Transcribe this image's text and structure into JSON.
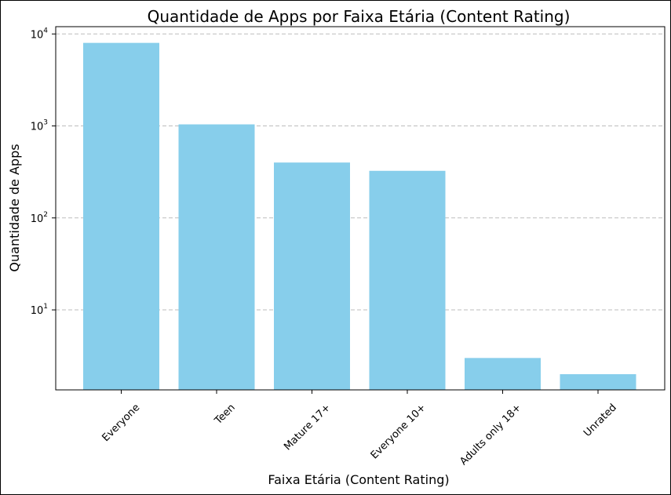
{
  "chart_data": {
    "type": "bar",
    "title": "Quantidade de Apps por Faixa Etária (Content Rating)",
    "xlabel": "Faixa Etária (Content Rating)",
    "ylabel": "Quantidade de Apps",
    "categories": [
      "Everyone",
      "Teen",
      "Mature 17+",
      "Everyone 10+",
      "Adults only 18+",
      "Unrated"
    ],
    "values": [
      8000,
      1040,
      400,
      325,
      3,
      2
    ],
    "yscale": "log",
    "ylim": [
      1.35,
      12000
    ],
    "yticks": [
      {
        "base": "10",
        "exp": "1",
        "value": 10
      },
      {
        "base": "10",
        "exp": "2",
        "value": 100
      },
      {
        "base": "10",
        "exp": "3",
        "value": 1000
      },
      {
        "base": "10",
        "exp": "4",
        "value": 10000
      }
    ],
    "grid": "y-dashed",
    "bar_color": "#87ceeb"
  }
}
